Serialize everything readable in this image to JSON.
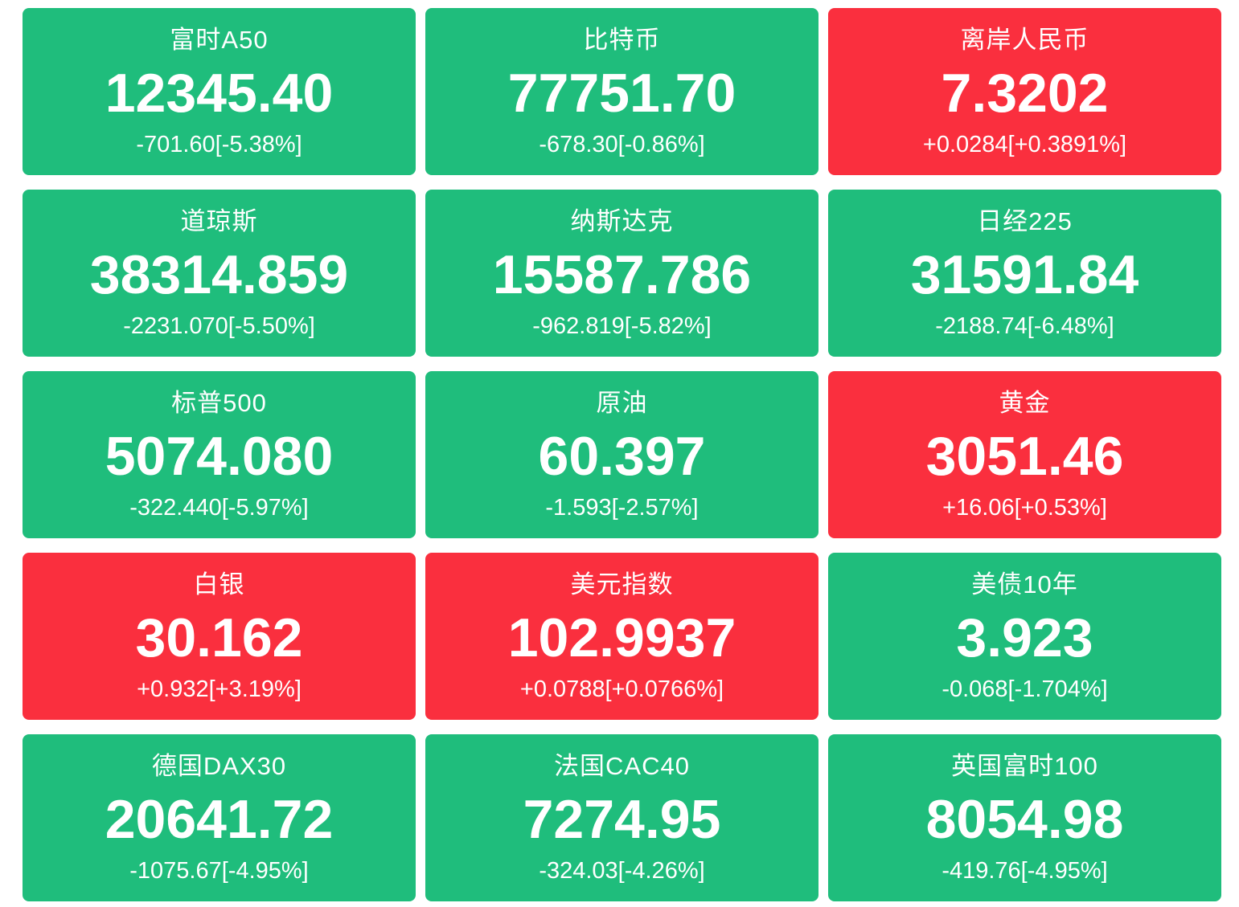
{
  "colors": {
    "down": "#1fbd7c",
    "up": "#fa2f3e",
    "text": "#ffffff",
    "page_background": "#ffffff"
  },
  "board_title": "market-overview",
  "tiles": [
    {
      "name": "富时A50",
      "value": "12345.40",
      "change": "-701.60[-5.38%]",
      "direction": "down"
    },
    {
      "name": "比特币",
      "value": "77751.70",
      "change": "-678.30[-0.86%]",
      "direction": "down"
    },
    {
      "name": "离岸人民币",
      "value": "7.3202",
      "change": "+0.0284[+0.3891%]",
      "direction": "up"
    },
    {
      "name": "道琼斯",
      "value": "38314.859",
      "change": "-2231.070[-5.50%]",
      "direction": "down"
    },
    {
      "name": "纳斯达克",
      "value": "15587.786",
      "change": "-962.819[-5.82%]",
      "direction": "down"
    },
    {
      "name": "日经225",
      "value": "31591.84",
      "change": "-2188.74[-6.48%]",
      "direction": "down"
    },
    {
      "name": "标普500",
      "value": "5074.080",
      "change": "-322.440[-5.97%]",
      "direction": "down"
    },
    {
      "name": "原油",
      "value": "60.397",
      "change": "-1.593[-2.57%]",
      "direction": "down"
    },
    {
      "name": "黄金",
      "value": "3051.46",
      "change": "+16.06[+0.53%]",
      "direction": "up"
    },
    {
      "name": "白银",
      "value": "30.162",
      "change": "+0.932[+3.19%]",
      "direction": "up"
    },
    {
      "name": "美元指数",
      "value": "102.9937",
      "change": "+0.0788[+0.0766%]",
      "direction": "up"
    },
    {
      "name": "美债10年",
      "value": "3.923",
      "change": "-0.068[-1.704%]",
      "direction": "down"
    },
    {
      "name": "德国DAX30",
      "value": "20641.72",
      "change": "-1075.67[-4.95%]",
      "direction": "down"
    },
    {
      "name": "法国CAC40",
      "value": "7274.95",
      "change": "-324.03[-4.26%]",
      "direction": "down"
    },
    {
      "name": "英国富时100",
      "value": "8054.98",
      "change": "-419.76[-4.95%]",
      "direction": "down"
    }
  ]
}
